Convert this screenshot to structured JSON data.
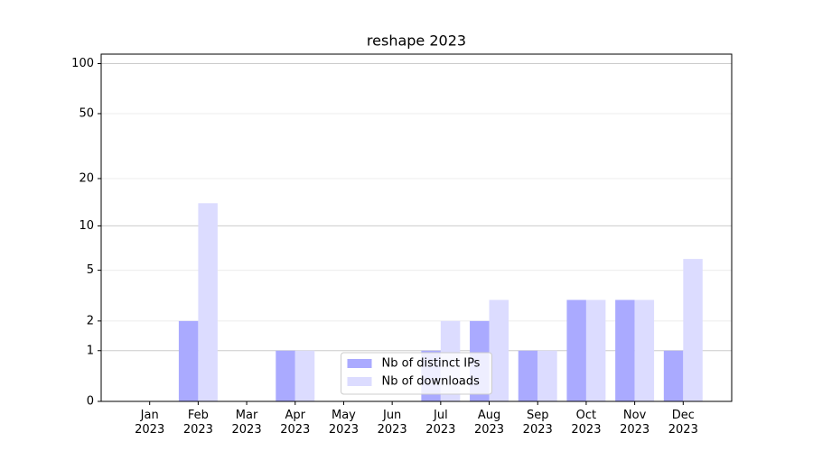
{
  "chart_data": {
    "type": "bar",
    "title": "reshape 2023",
    "categories": [
      "Jan\n2023",
      "Feb\n2023",
      "Mar\n2023",
      "Apr\n2023",
      "May\n2023",
      "Jun\n2023",
      "Jul\n2023",
      "Aug\n2023",
      "Sep\n2023",
      "Oct\n2023",
      "Nov\n2023",
      "Dec\n2023"
    ],
    "series": [
      {
        "name": "Nb of distinct IPs",
        "color": "#aaaaff",
        "values": [
          0,
          2,
          0,
          1,
          0,
          0,
          1,
          2,
          1,
          3,
          3,
          1
        ]
      },
      {
        "name": "Nb of downloads",
        "color": "#dcdcff",
        "values": [
          0,
          14,
          0,
          1,
          0,
          0,
          2,
          3,
          1,
          3,
          3,
          6
        ]
      }
    ],
    "yscale": "log1p",
    "ylim": [
      0,
      114
    ],
    "yticks": [
      0,
      1,
      2,
      5,
      10,
      20,
      50,
      100
    ],
    "grid": true,
    "legend": "lower center"
  }
}
